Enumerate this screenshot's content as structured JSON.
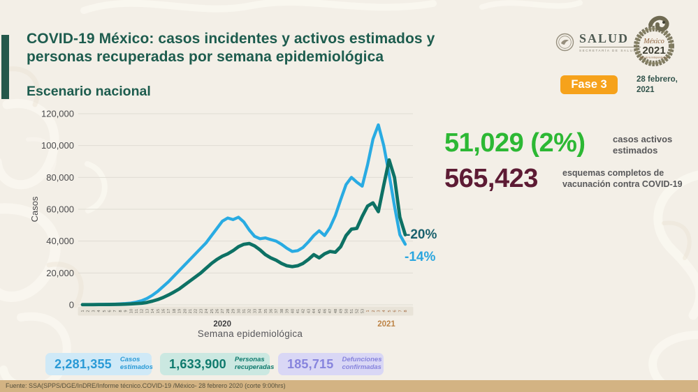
{
  "header": {
    "title_line1": "COVID-19 México: casos incidentes y activos estimados y",
    "title_line2": "personas recuperadas por semana epidemiológica",
    "subtitle": "Escenario nacional",
    "salud_logo_text": "SALUD",
    "salud_logo_sub": "SECRETARÍA DE SALUD",
    "mexico_logo_line1": "México",
    "mexico_logo_line2": "2021",
    "mexico_logo_line3": "Año de la Independencia",
    "phase_badge": "Fase 3",
    "date_line1": "28 febrero,",
    "date_line2": "2021"
  },
  "stats": {
    "active_value": "51,029 (2%)",
    "active_label_line1": "casos activos",
    "active_label_line2": "estimados",
    "vaccination_value": "565,423",
    "vaccination_label_line1": "esquemas completos de",
    "vaccination_label_line2": "vacunación contra COVID-19"
  },
  "annotations": {
    "recovered_change": "-20%",
    "incident_change": "-14%"
  },
  "footer_boxes": [
    {
      "value": "2,281,355",
      "label_line1": "Casos",
      "label_line2": "estimados"
    },
    {
      "value": "1,633,900",
      "label_line1": "Personas",
      "label_line2": "recuperadas"
    },
    {
      "value": "185,715",
      "label_line1": "Defunciones",
      "label_line2": "confirmadas"
    }
  ],
  "source": "Fuente: SSA(SPPS/DGE/InDRE/Informe técnico.COVID-19 /México- 28 febrero 2020 (corte 9:00hrs)",
  "colors": {
    "background": "#f3efe7",
    "accent_bar": "#24584b",
    "title": "#1d5c4e",
    "badge_orange": "#f6a21b",
    "active_green": "#2cb834",
    "vaccination_maroon": "#5d1b34",
    "incident_line_blue": "#29abe2",
    "recovered_line_teal": "#0d7164",
    "annot_teal": "#1a616d",
    "annot_blue": "#2aa6df",
    "year2021": "#bd8447",
    "box1_bg": "#cfe9f7",
    "box1_text": "#2a9ad6",
    "box2_bg": "#cbe8e1",
    "box2_text": "#0f7a6d",
    "box3_bg": "#d9d7f5",
    "box3_text": "#8784dd",
    "footer_bg": "#d3b383"
  },
  "chart_data": {
    "type": "line",
    "title": "",
    "xlabel": "Semana epidemiológica",
    "ylabel": "Casos",
    "ylim": [
      0,
      120000
    ],
    "ytick_step": 20000,
    "ytick_labels": [
      "0",
      "20,000",
      "40,000",
      "60,000",
      "80,000",
      "100,000",
      "120,000"
    ],
    "grid": true,
    "legend_position": "none",
    "x_groups": [
      {
        "year": "2020",
        "weeks": [
          1,
          2,
          3,
          4,
          5,
          6,
          7,
          8,
          9,
          10,
          11,
          12,
          13,
          14,
          15,
          16,
          17,
          18,
          19,
          20,
          21,
          22,
          23,
          24,
          25,
          26,
          27,
          28,
          29,
          30,
          31,
          32,
          33,
          34,
          35,
          36,
          37,
          38,
          39,
          40,
          41,
          42,
          43,
          44,
          45,
          46,
          47,
          48,
          49,
          50,
          51,
          52,
          53
        ]
      },
      {
        "year": "2021",
        "weeks": [
          1,
          2,
          3,
          4,
          5,
          6,
          7,
          8
        ]
      }
    ],
    "series": [
      {
        "name": "Casos incidentes estimados",
        "color": "#29abe2",
        "values": [
          150,
          150,
          200,
          250,
          300,
          350,
          450,
          600,
          800,
          1100,
          1700,
          2600,
          4000,
          6000,
          8500,
          11500,
          14500,
          18000,
          21500,
          25000,
          28500,
          32000,
          35500,
          39000,
          43500,
          48000,
          52500,
          54500,
          53500,
          55000,
          52000,
          47000,
          43000,
          41500,
          42000,
          41000,
          40000,
          38000,
          35500,
          33500,
          34000,
          36000,
          39500,
          43500,
          46500,
          43500,
          48500,
          56000,
          66000,
          75500,
          80000,
          77000,
          74500,
          88000,
          104000,
          113000,
          100000,
          82000,
          62000,
          44000,
          38000
        ]
      },
      {
        "name": "Personas recuperadas",
        "color": "#0d7164",
        "values": [
          100,
          100,
          100,
          150,
          150,
          200,
          250,
          300,
          400,
          550,
          750,
          1000,
          1500,
          2300,
          3300,
          4600,
          6200,
          8000,
          10000,
          12500,
          15000,
          17500,
          20000,
          23000,
          26000,
          28500,
          30500,
          32000,
          34000,
          36500,
          38000,
          38500,
          37000,
          34500,
          31500,
          29500,
          28000,
          26000,
          24500,
          24000,
          24500,
          26000,
          28500,
          31500,
          29500,
          32000,
          33500,
          33000,
          36500,
          43500,
          47500,
          48000,
          55500,
          62000,
          64000,
          58500,
          75000,
          91000,
          80000,
          55000,
          44000
        ]
      }
    ]
  }
}
